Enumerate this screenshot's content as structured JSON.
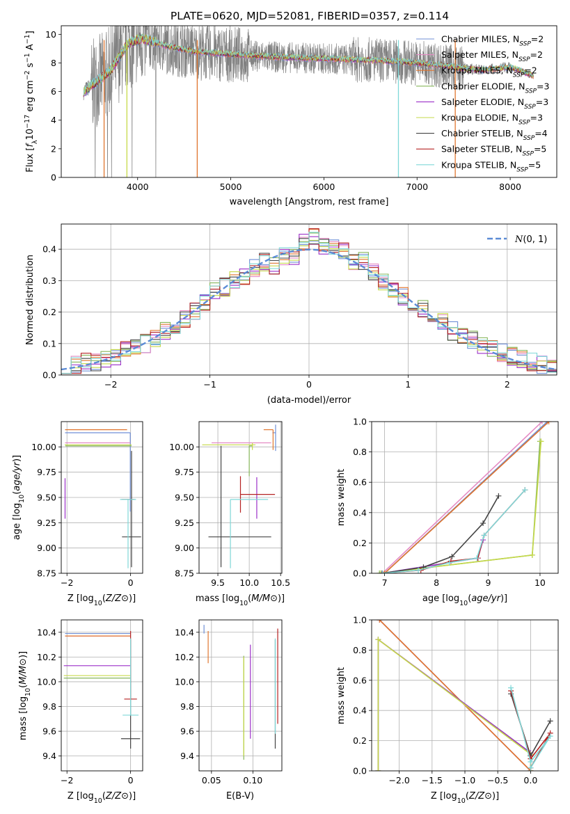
{
  "figure": {
    "title": "PLATE=0620, MJD=52081, FIBERID=0357, z=0.114"
  },
  "models": [
    {
      "name": "Chabrier MILES, N_SSP=2",
      "prefix": "Chabrier MILES, N",
      "sub": "SSP",
      "suffix": "=2",
      "color": "#6f8fd6"
    },
    {
      "name": "Salpeter MILES, N_SSP=2",
      "prefix": "Salpeter MILES, N",
      "sub": "SSP",
      "suffix": "=2",
      "color": "#e58bc4"
    },
    {
      "name": "Kroupa MILES, N_SSP=2",
      "prefix": "Kroupa MILES, N",
      "sub": "SSP",
      "suffix": "=2",
      "color": "#e0752e"
    },
    {
      "name": "Chabrier ELODIE, N_SSP=3",
      "prefix": "Chabrier ELODIE, N",
      "sub": "SSP",
      "suffix": "=3",
      "color": "#86b65a"
    },
    {
      "name": "Salpeter ELODIE, N_SSP=3",
      "prefix": "Salpeter ELODIE, N",
      "sub": "SSP",
      "suffix": "=3",
      "color": "#9b2fc8"
    },
    {
      "name": "Kroupa ELODIE, N_SSP=3",
      "prefix": "Kroupa ELODIE, N",
      "sub": "SSP",
      "suffix": "=3",
      "color": "#c6d94a"
    },
    {
      "name": "Chabrier STELIB, N_SSP=4",
      "prefix": "Chabrier STELIB, N",
      "sub": "SSP",
      "suffix": "=4",
      "color": "#444444"
    },
    {
      "name": "Salpeter STELIB, N_SSP=5",
      "prefix": "Salpeter STELIB, N",
      "sub": "SSP",
      "suffix": "=5",
      "color": "#b52222"
    },
    {
      "name": "Kroupa STELIB, N_SSP=5",
      "prefix": "Kroupa STELIB, N",
      "sub": "SSP",
      "suffix": "=5",
      "color": "#7fd8d8"
    }
  ],
  "chart_data": [
    {
      "type": "line",
      "xlabel": "wavelength [Angstrom, rest frame]",
      "ylabel": "Flux [f_λ 10^-17 erg cm^-2 s^-1 A^-1]",
      "xlim": [
        3180,
        8500
      ],
      "ylim": [
        0,
        10.6
      ],
      "xticks": [
        4000,
        5000,
        6000,
        7000,
        8000
      ],
      "yticks": [
        0,
        2,
        4,
        6,
        8,
        10
      ],
      "grid": false,
      "legend": "top-right",
      "data_color": "#808080",
      "continuum_knots_x": [
        3420,
        3700,
        3900,
        4050,
        4300,
        4600,
        5000,
        5500,
        6000,
        6500,
        7000,
        7300,
        7500,
        7700,
        8000,
        8250
      ],
      "continuum_knots_y": [
        6.0,
        7.4,
        9.4,
        9.7,
        9.2,
        8.8,
        8.6,
        8.4,
        8.3,
        8.2,
        8.0,
        7.8,
        7.6,
        7.5,
        7.7,
        7.1
      ],
      "drop_lines": [
        {
          "x": 3640,
          "color": "#e0752e"
        },
        {
          "x": 3885,
          "color": "#c6d94a"
        },
        {
          "x": 4640,
          "color": "#e0752e"
        },
        {
          "x": 6800,
          "color": "#7fd8d8"
        },
        {
          "x": 7410,
          "color": "#e0752e"
        }
      ]
    },
    {
      "type": "histogram",
      "xlabel": "(data-model)/error",
      "ylabel": "Normed distribution",
      "xlim": [
        -2.5,
        2.5
      ],
      "ylim": [
        0,
        0.48
      ],
      "xticks": [
        -2,
        -1,
        0,
        1,
        2
      ],
      "yticks": [
        0.0,
        0.1,
        0.2,
        0.3,
        0.4
      ],
      "grid": true,
      "legend": "top-right",
      "reference_curve": {
        "label": "N(0,1)",
        "sigma": 1.0,
        "color": "#5b8bd6"
      },
      "bin_width": 0.1,
      "bin_values": [
        0.03,
        0.03,
        0.04,
        0.04,
        0.05,
        0.06,
        0.08,
        0.09,
        0.1,
        0.12,
        0.14,
        0.16,
        0.18,
        0.2,
        0.23,
        0.27,
        0.28,
        0.3,
        0.31,
        0.34,
        0.36,
        0.35,
        0.38,
        0.38,
        0.42,
        0.44,
        0.41,
        0.4,
        0.39,
        0.36,
        0.36,
        0.33,
        0.3,
        0.27,
        0.25,
        0.21,
        0.21,
        0.19,
        0.17,
        0.14,
        0.12,
        0.11,
        0.09,
        0.08,
        0.07,
        0.06,
        0.05,
        0.04,
        0.03,
        0.03
      ]
    },
    {
      "type": "errorbar",
      "xlabel": "Z [log10(Z/Z⊙)]",
      "ylabel": "age  [log10(age/yr)]",
      "xlim": [
        -2.18,
        0.38
      ],
      "ylim": [
        8.75,
        10.25
      ],
      "xticks": [
        -2,
        0
      ],
      "yticks": [
        8.75,
        9.0,
        9.25,
        9.5,
        9.75,
        10.0
      ],
      "grid": true,
      "points": [
        {
          "model": 0,
          "x": -0.01,
          "y": 10.14,
          "xerr": [
            2.05,
            0.0
          ],
          "yerr": [
            0.78,
            0.0
          ]
        },
        {
          "model": 1,
          "x": -0.01,
          "y": 10.04,
          "xerr": [
            2.05,
            0.0
          ],
          "yerr": [
            0.0,
            0.0
          ]
        },
        {
          "model": 2,
          "x": -0.11,
          "y": 10.17,
          "xerr": [
            1.95,
            0.0
          ],
          "yerr": [
            0.0,
            0.0
          ]
        },
        {
          "model": 3,
          "x": 0.03,
          "y": 10.01,
          "xerr": [
            2.08,
            0.0
          ],
          "yerr": [
            0.0,
            0.0
          ]
        },
        {
          "model": 4,
          "x": -2.06,
          "y": 9.49,
          "xerr": [
            0.0,
            0.0
          ],
          "yerr": [
            0.2,
            0.2
          ]
        },
        {
          "model": 5,
          "x": 0.03,
          "y": 10.02,
          "xerr": [
            2.1,
            0.0
          ],
          "yerr": [
            0.0,
            0.0
          ]
        },
        {
          "model": 6,
          "x": 0.03,
          "y": 9.11,
          "xerr": [
            0.3,
            0.3
          ],
          "yerr": [
            0.3,
            0.85
          ]
        },
        {
          "model": 7,
          "x": -0.08,
          "y": 9.48,
          "xerr": [
            0.2,
            0.2
          ],
          "yerr": [
            0.0,
            0.0
          ]
        },
        {
          "model": 8,
          "x": -0.08,
          "y": 9.48,
          "xerr": [
            0.25,
            0.25
          ],
          "yerr": [
            0.68,
            0.0
          ]
        }
      ]
    },
    {
      "type": "errorbar",
      "xlabel": "mass [log10(M/M⊙)]",
      "ylabel": "",
      "xlim": [
        9.2,
        10.52
      ],
      "ylim": [
        8.75,
        10.25
      ],
      "xticks": [
        9.5,
        10.0,
        10.5
      ],
      "yticks": [
        8.75,
        9.0,
        9.25,
        9.5,
        9.75,
        10.0
      ],
      "grid": true,
      "points": [
        {
          "model": 0,
          "x": 10.42,
          "y": 10.14,
          "xerr": [
            0.05,
            0.0
          ],
          "yerr": [
            0.18,
            0.08
          ]
        },
        {
          "model": 1,
          "x": 10.35,
          "y": 10.04,
          "xerr": [
            0.95,
            0.0
          ],
          "yerr": [
            0.0,
            0.0
          ]
        },
        {
          "model": 2,
          "x": 10.38,
          "y": 10.17,
          "xerr": [
            0.15,
            0.0
          ],
          "yerr": [
            0.2,
            0.0
          ]
        },
        {
          "model": 3,
          "x": 10.0,
          "y": 10.01,
          "xerr": [
            0.0,
            0.05
          ],
          "yerr": [
            0.3,
            0.0
          ]
        },
        {
          "model": 4,
          "x": 10.12,
          "y": 9.5,
          "xerr": [
            0.0,
            0.0
          ],
          "yerr": [
            0.21,
            0.2
          ]
        },
        {
          "model": 5,
          "x": 10.05,
          "y": 10.02,
          "xerr": [
            0.8,
            0.05
          ],
          "yerr": [
            0.05,
            0.02
          ]
        },
        {
          "model": 6,
          "x": 9.55,
          "y": 9.11,
          "xerr": [
            0.2,
            0.8
          ],
          "yerr": [
            0.3,
            0.9
          ]
        },
        {
          "model": 7,
          "x": 9.86,
          "y": 9.53,
          "xerr": [
            0.0,
            0.55
          ],
          "yerr": [
            0.18,
            0.18
          ]
        },
        {
          "model": 8,
          "x": 9.7,
          "y": 9.48,
          "xerr": [
            0.0,
            0.6
          ],
          "yerr": [
            0.68,
            0.0
          ]
        }
      ]
    },
    {
      "type": "line",
      "xlabel": "age  [log10(age/yr)]",
      "ylabel": "mass weight",
      "xlim": [
        6.75,
        10.35
      ],
      "ylim": [
        0,
        1.0
      ],
      "xticks": [
        7,
        8,
        9,
        10
      ],
      "yticks": [
        0.0,
        0.2,
        0.4,
        0.6,
        0.8,
        1.0
      ],
      "grid": true,
      "series": [
        {
          "model": 0,
          "x": [
            7.0,
            10.14
          ],
          "y": [
            0.0,
            1.0
          ]
        },
        {
          "model": 1,
          "x": [
            6.96,
            10.04
          ],
          "y": [
            0.0,
            1.0
          ]
        },
        {
          "model": 2,
          "x": [
            7.0,
            10.17
          ],
          "y": [
            0.0,
            1.0
          ]
        },
        {
          "model": 3,
          "x": [
            6.9,
            9.85,
            10.0
          ],
          "y": [
            0.0,
            0.12,
            0.87
          ]
        },
        {
          "model": 4,
          "x": [
            6.95,
            8.8,
            8.9
          ],
          "y": [
            0.0,
            0.1,
            0.22
          ]
        },
        {
          "model": 5,
          "x": [
            6.92,
            9.85,
            10.02
          ],
          "y": [
            0.0,
            0.12,
            0.87
          ]
        },
        {
          "model": 6,
          "x": [
            6.95,
            7.75,
            8.3,
            8.9,
            9.2
          ],
          "y": [
            0.0,
            0.04,
            0.11,
            0.33,
            0.51
          ]
        },
        {
          "model": 7,
          "x": [
            6.96,
            7.7,
            8.28,
            8.8,
            8.92,
            9.71
          ],
          "y": [
            0.0,
            0.02,
            0.08,
            0.1,
            0.25,
            0.55
          ]
        },
        {
          "model": 8,
          "x": [
            6.96,
            7.65,
            8.25,
            8.78,
            8.92,
            9.71
          ],
          "y": [
            0.0,
            0.02,
            0.07,
            0.1,
            0.25,
            0.55
          ]
        }
      ]
    },
    {
      "type": "errorbar",
      "xlabel": "Z [log10(Z/Z⊙)]",
      "ylabel": "mass [log10(M/M⊙)]",
      "xlim": [
        -2.18,
        0.38
      ],
      "ylim": [
        9.28,
        10.5
      ],
      "xticks": [
        -2,
        0
      ],
      "yticks": [
        9.4,
        9.6,
        9.8,
        10.0,
        10.2,
        10.4
      ],
      "grid": true,
      "points": [
        {
          "model": 0,
          "x": -0.01,
          "y": 10.39,
          "xerr": [
            2.05,
            0.0
          ],
          "yerr": [
            0.0,
            0.0
          ]
        },
        {
          "model": 1,
          "x": -0.01,
          "y": 10.37,
          "xerr": [
            2.05,
            0.0
          ],
          "yerr": [
            0.0,
            0.0
          ]
        },
        {
          "model": 2,
          "x": -0.01,
          "y": 10.37,
          "xerr": [
            2.05,
            0.0
          ],
          "yerr": [
            0.0,
            0.0
          ]
        },
        {
          "model": 3,
          "x": 0.0,
          "y": 10.03,
          "xerr": [
            2.1,
            0.0
          ],
          "yerr": [
            0.0,
            0.0
          ]
        },
        {
          "model": 4,
          "x": 0.0,
          "y": 10.13,
          "xerr": [
            2.1,
            0.0
          ],
          "yerr": [
            0.0,
            0.0
          ]
        },
        {
          "model": 5,
          "x": 0.0,
          "y": 10.05,
          "xerr": [
            2.1,
            0.0
          ],
          "yerr": [
            0.0,
            0.0
          ]
        },
        {
          "model": 6,
          "x": 0.0,
          "y": 9.54,
          "xerr": [
            0.3,
            0.3
          ],
          "yerr": [
            0.08,
            0.8
          ]
        },
        {
          "model": 7,
          "x": 0.0,
          "y": 9.86,
          "xerr": [
            0.2,
            0.2
          ],
          "yerr": [
            0.0,
            0.55
          ]
        },
        {
          "model": 8,
          "x": 0.0,
          "y": 9.73,
          "xerr": [
            0.25,
            0.25
          ],
          "yerr": [
            0.0,
            0.62
          ]
        }
      ]
    },
    {
      "type": "errorbar",
      "xlabel": "E(B-V)",
      "ylabel": "",
      "xlim": [
        0.035,
        0.135
      ],
      "ylim": [
        9.28,
        10.5
      ],
      "xticks": [
        0.05,
        0.1
      ],
      "yticks": [
        9.4,
        9.6,
        9.8,
        10.0,
        10.2,
        10.4
      ],
      "grid": true,
      "points": [
        {
          "model": 0,
          "x": 0.041,
          "y": 10.39,
          "xerr": [
            0.0,
            0.0
          ],
          "yerr": [
            0.0,
            0.07
          ]
        },
        {
          "model": 2,
          "x": 0.046,
          "y": 10.37,
          "xerr": [
            0.0,
            0.0
          ],
          "yerr": [
            0.22,
            0.04
          ]
        },
        {
          "model": 3,
          "x": 0.089,
          "y": 10.03,
          "xerr": [
            0.0,
            0.0
          ],
          "yerr": [
            0.66,
            0.18
          ]
        },
        {
          "model": 4,
          "x": 0.097,
          "y": 10.13,
          "xerr": [
            0.0,
            0.0
          ],
          "yerr": [
            0.59,
            0.17
          ]
        },
        {
          "model": 5,
          "x": 0.089,
          "y": 10.05,
          "xerr": [
            0.0,
            0.0
          ],
          "yerr": [
            0.65,
            0.15
          ]
        },
        {
          "model": 6,
          "x": 0.127,
          "y": 9.54,
          "xerr": [
            0.0,
            0.0
          ],
          "yerr": [
            0.08,
            0.8
          ]
        },
        {
          "model": 7,
          "x": 0.13,
          "y": 9.86,
          "xerr": [
            0.0,
            0.0
          ],
          "yerr": [
            0.2,
            0.57
          ]
        },
        {
          "model": 8,
          "x": 0.127,
          "y": 9.73,
          "xerr": [
            0.0,
            0.0
          ],
          "yerr": [
            0.15,
            0.62
          ]
        }
      ]
    },
    {
      "type": "line",
      "xlabel": "Z [log10(Z/Z⊙)]",
      "ylabel": "mass weight",
      "xlim": [
        -2.42,
        0.42
      ],
      "ylim": [
        0,
        1.0
      ],
      "xticks": [
        -2.0,
        -1.5,
        -1.0,
        -0.5,
        0.0
      ],
      "yticks": [
        0.0,
        0.2,
        0.4,
        0.6,
        0.8,
        1.0
      ],
      "grid": true,
      "series": [
        {
          "model": 0,
          "x": [
            -2.3,
            0.0
          ],
          "y": [
            1.0,
            0.0
          ]
        },
        {
          "model": 1,
          "x": [
            -2.3,
            0.0
          ],
          "y": [
            1.0,
            0.0
          ]
        },
        {
          "model": 2,
          "x": [
            -2.3,
            0.0
          ],
          "y": [
            1.0,
            0.0
          ]
        },
        {
          "model": 3,
          "x": [
            -2.32,
            -2.32,
            0.0,
            0.0
          ],
          "y": [
            0.0,
            0.87,
            0.12,
            0.0
          ]
        },
        {
          "model": 4,
          "x": [
            -2.32,
            -2.32,
            0.0,
            0.0
          ],
          "y": [
            0.0,
            0.87,
            0.12,
            0.0
          ]
        },
        {
          "model": 5,
          "x": [
            -2.32,
            -2.32,
            0.0,
            0.0
          ],
          "y": [
            0.0,
            0.87,
            0.11,
            0.0
          ]
        },
        {
          "model": 6,
          "x": [
            0.0,
            0.3,
            0.0,
            -0.3
          ],
          "y": [
            0.1,
            0.33,
            0.1,
            0.51
          ]
        },
        {
          "model": 7,
          "x": [
            0.0,
            0.3,
            0.0,
            -0.3
          ],
          "y": [
            0.02,
            0.25,
            0.08,
            0.53
          ]
        },
        {
          "model": 8,
          "x": [
            0.0,
            0.3,
            0.0,
            -0.3
          ],
          "y": [
            0.02,
            0.23,
            0.06,
            0.55
          ]
        }
      ]
    }
  ]
}
